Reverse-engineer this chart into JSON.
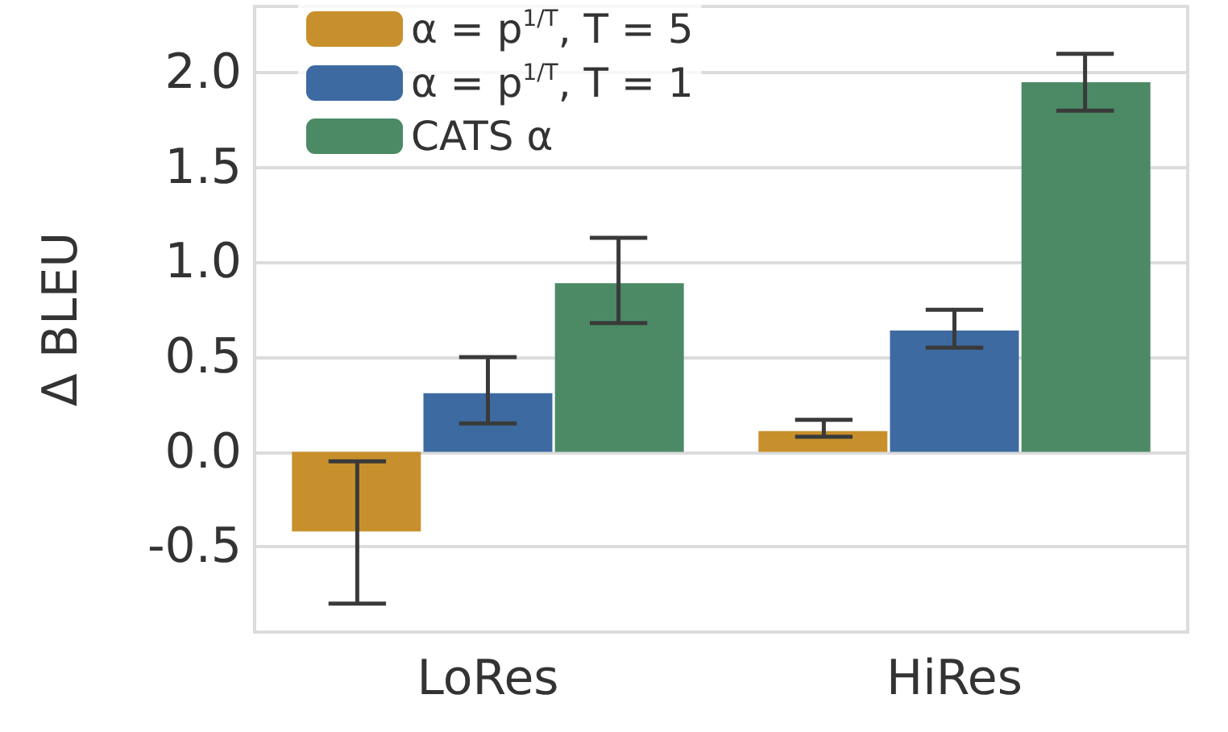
{
  "chart_data": {
    "type": "bar",
    "ylabel": "Δ BLEU",
    "categories": [
      "LoRes",
      "HiRes"
    ],
    "series": [
      {
        "name": "α = p$^{1/T}$, T = 5",
        "color": "#c8902c",
        "values": [
          -0.42,
          0.11
        ],
        "errors": [
          [
            -0.8,
            -0.05
          ],
          [
            0.08,
            0.17
          ]
        ]
      },
      {
        "name": "α = p$^{1/T}$, T = 1",
        "color": "#3d6aa0",
        "values": [
          0.31,
          0.64
        ],
        "errors": [
          [
            0.15,
            0.5
          ],
          [
            0.55,
            0.75
          ]
        ]
      },
      {
        "name": "CATS α",
        "color": "#4b8a65",
        "values": [
          0.89,
          1.95
        ],
        "errors": [
          [
            0.68,
            1.13
          ],
          [
            1.8,
            2.1
          ]
        ]
      }
    ],
    "ylim": [
      -0.95,
      2.35
    ],
    "yticks": [
      -0.5,
      {
        "value": 0,
        "label": "0.0"
      },
      0.5,
      {
        "value": 1,
        "label": "1.0"
      },
      1.5,
      {
        "value": 2,
        "label": "2.0"
      }
    ],
    "grid": "y",
    "legend": "top left"
  }
}
